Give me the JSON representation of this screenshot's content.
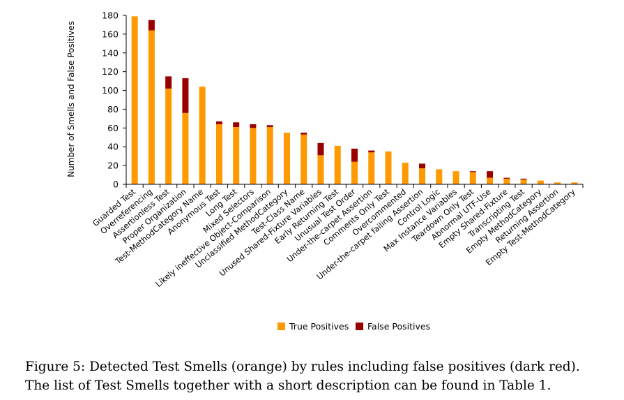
{
  "chart_data": {
    "type": "bar",
    "stacked": true,
    "ylabel": "Number of Smells and False Positives",
    "xlabel": "",
    "ylim": [
      0,
      180
    ],
    "yticks": [
      0,
      20,
      40,
      60,
      80,
      100,
      120,
      140,
      160,
      180
    ],
    "grid": false,
    "legend_position": "bottom",
    "categories": [
      "Guarded Test",
      "Overreferencing",
      "Assertionless Test",
      "Proper Organization",
      "Test-MethodCategory Name",
      "Anonymous Test",
      "Long Test",
      "Mixed Selectors",
      "Likely ineffective Object-Comparison",
      "Unclassified MethodCategory",
      "Test-Class Name",
      "Unused Shared-Fixture Variables",
      "Early Returning Test",
      "Unusual Test Order",
      "Under-the-carpet Assertion",
      "Comments Only Test",
      "Overcommented",
      "Under-the-carpet failing Assertion",
      "Control Logic",
      "Max Instance Variables",
      "Teardown Only Test",
      "Abnormal UTF-Use",
      "Empty Shared-Fixture",
      "Transcripting Test",
      "Empty MethodCategory",
      "Returning Assertion",
      "Empty Test-MethodCategory"
    ],
    "series": [
      {
        "name": "True Positives",
        "color": "#FF9900",
        "values": [
          179,
          164,
          102,
          76,
          104,
          64,
          61,
          60,
          61,
          55,
          53,
          31,
          41,
          24,
          34,
          35,
          23,
          17,
          16,
          14,
          13,
          7,
          6,
          5,
          4,
          2,
          2
        ]
      },
      {
        "name": "False Positives",
        "color": "#990000",
        "values": [
          0,
          11,
          13,
          37,
          0,
          3,
          5,
          4,
          2,
          0,
          2,
          13,
          0,
          14,
          2,
          0,
          0,
          5,
          0,
          0,
          1,
          7,
          1,
          1,
          0,
          0,
          0
        ]
      }
    ]
  },
  "caption": {
    "line1": "Figure 5:  Detected Test Smells (orange) by rules including false positives (dark red).",
    "line2": "The list of Test Smells together with a short description can be found in Table 1."
  }
}
